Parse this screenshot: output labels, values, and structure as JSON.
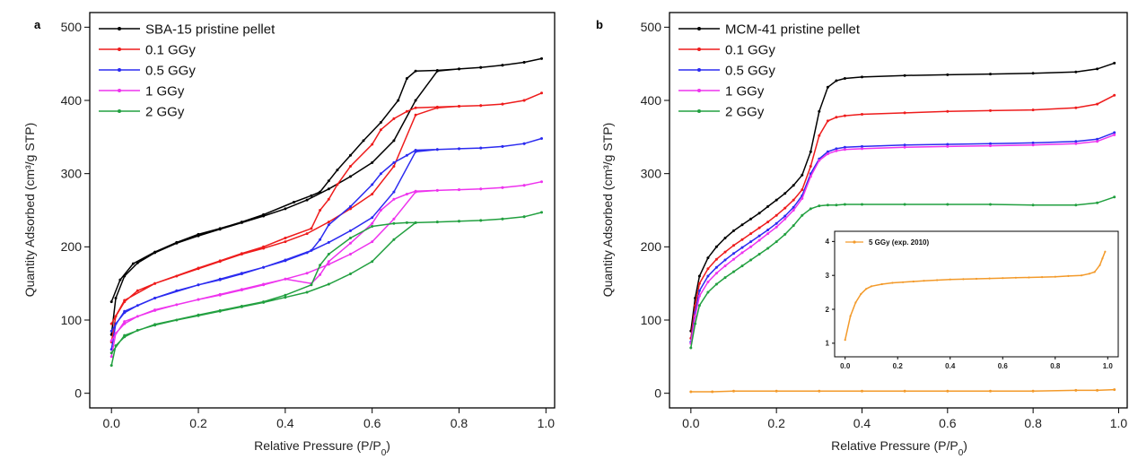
{
  "chart_data": [
    {
      "panel": "a",
      "type": "line",
      "xlabel": "Relative Pressure (P/P",
      "xlabel_sub": "0",
      "xlabel_end": ")",
      "ylabel": "Quantity Adsorbed (cm³/g STP)",
      "xlim": [
        -0.05,
        1.02
      ],
      "ylim": [
        -20,
        520
      ],
      "xticks": [
        0.0,
        0.2,
        0.4,
        0.6,
        0.8,
        1.0
      ],
      "xtick_labels": [
        "0.0",
        "0.2",
        "0.4",
        "0.6",
        "0.8",
        "1.0"
      ],
      "yticks": [
        0,
        100,
        200,
        300,
        400,
        500
      ],
      "ytick_labels": [
        "0",
        "100",
        "200",
        "300",
        "400",
        "500"
      ],
      "legend_position": "top-left",
      "series": [
        {
          "name": "SBA-15 pristine pellet",
          "color": "#000000",
          "x": [
            0.0,
            0.01,
            0.03,
            0.06,
            0.1,
            0.15,
            0.2,
            0.25,
            0.3,
            0.35,
            0.4,
            0.45,
            0.5,
            0.55,
            0.6,
            0.65,
            0.7,
            0.75,
            0.8,
            0.85,
            0.9,
            0.95,
            0.99,
            0.95,
            0.9,
            0.85,
            0.8,
            0.75,
            0.7,
            0.68,
            0.66,
            0.62,
            0.58,
            0.55,
            0.52,
            0.5,
            0.48,
            0.46,
            0.42,
            0.35,
            0.3,
            0.25,
            0.2,
            0.15,
            0.1,
            0.05,
            0.02,
            0.0
          ],
          "y": [
            80,
            130,
            160,
            178,
            192,
            205,
            215,
            224,
            233,
            242,
            252,
            264,
            279,
            296,
            315,
            345,
            400,
            440,
            443,
            445,
            448,
            452,
            457,
            452,
            448,
            445,
            443,
            441,
            440,
            430,
            400,
            370,
            345,
            325,
            305,
            290,
            275,
            270,
            261,
            244,
            234,
            225,
            217,
            206,
            193,
            177,
            155,
            125
          ]
        },
        {
          "name": "0.1 GGy",
          "color": "#ee1c1c",
          "x": [
            0.0,
            0.01,
            0.03,
            0.06,
            0.1,
            0.15,
            0.2,
            0.25,
            0.3,
            0.35,
            0.4,
            0.45,
            0.5,
            0.55,
            0.6,
            0.65,
            0.7,
            0.75,
            0.8,
            0.85,
            0.9,
            0.95,
            0.99,
            0.95,
            0.9,
            0.85,
            0.8,
            0.75,
            0.7,
            0.68,
            0.65,
            0.62,
            0.6,
            0.55,
            0.52,
            0.5,
            0.48,
            0.46,
            0.4,
            0.35,
            0.3,
            0.25,
            0.2,
            0.1,
            0.03,
            0.0
          ],
          "y": [
            70,
            105,
            125,
            140,
            150,
            160,
            170,
            180,
            190,
            198,
            207,
            218,
            234,
            252,
            272,
            310,
            380,
            390,
            392,
            393,
            395,
            400,
            410,
            400,
            395,
            393,
            392,
            391,
            390,
            385,
            375,
            360,
            340,
            310,
            285,
            265,
            250,
            225,
            212,
            200,
            191,
            181,
            171,
            150,
            127,
            95
          ]
        },
        {
          "name": "0.5 GGy",
          "color": "#2b2bf0",
          "x": [
            0.0,
            0.01,
            0.03,
            0.06,
            0.1,
            0.15,
            0.2,
            0.25,
            0.3,
            0.35,
            0.4,
            0.45,
            0.5,
            0.55,
            0.6,
            0.65,
            0.7,
            0.75,
            0.8,
            0.85,
            0.9,
            0.95,
            0.99,
            0.95,
            0.9,
            0.85,
            0.8,
            0.75,
            0.7,
            0.68,
            0.65,
            0.62,
            0.6,
            0.55,
            0.5,
            0.48,
            0.46,
            0.4,
            0.35,
            0.3,
            0.25,
            0.2,
            0.1,
            0.03,
            0.0
          ],
          "y": [
            60,
            95,
            110,
            120,
            130,
            140,
            148,
            156,
            164,
            172,
            181,
            192,
            206,
            222,
            240,
            275,
            330,
            333,
            334,
            335,
            337,
            341,
            348,
            341,
            337,
            335,
            334,
            333,
            332,
            325,
            315,
            300,
            285,
            255,
            230,
            210,
            195,
            182,
            172,
            163,
            155,
            148,
            130,
            112,
            85
          ]
        },
        {
          "name": "1 GGy",
          "color": "#ee33ee",
          "x": [
            0.0,
            0.01,
            0.03,
            0.06,
            0.1,
            0.15,
            0.2,
            0.25,
            0.3,
            0.35,
            0.4,
            0.45,
            0.5,
            0.55,
            0.6,
            0.65,
            0.7,
            0.75,
            0.8,
            0.85,
            0.9,
            0.95,
            0.99,
            0.95,
            0.9,
            0.85,
            0.8,
            0.75,
            0.7,
            0.68,
            0.65,
            0.62,
            0.6,
            0.55,
            0.5,
            0.48,
            0.46,
            0.4,
            0.35,
            0.3,
            0.25,
            0.2,
            0.1,
            0.03,
            0.0
          ],
          "y": [
            50,
            82,
            95,
            105,
            113,
            121,
            128,
            135,
            142,
            149,
            156,
            164,
            176,
            190,
            207,
            238,
            275,
            277,
            278,
            279,
            281,
            284,
            289,
            284,
            281,
            279,
            278,
            277,
            276,
            272,
            265,
            250,
            232,
            205,
            180,
            162,
            150,
            156,
            148,
            141,
            134,
            128,
            114,
            98,
            72
          ]
        },
        {
          "name": "2 GGy",
          "color": "#22a040",
          "x": [
            0.0,
            0.01,
            0.03,
            0.06,
            0.1,
            0.15,
            0.2,
            0.25,
            0.3,
            0.35,
            0.4,
            0.45,
            0.5,
            0.55,
            0.6,
            0.65,
            0.7,
            0.75,
            0.8,
            0.85,
            0.9,
            0.95,
            0.99,
            0.95,
            0.9,
            0.85,
            0.8,
            0.75,
            0.7,
            0.68,
            0.65,
            0.6,
            0.55,
            0.5,
            0.48,
            0.46,
            0.4,
            0.35,
            0.3,
            0.25,
            0.2,
            0.1,
            0.03,
            0.0
          ],
          "y": [
            38,
            65,
            77,
            86,
            93,
            100,
            106,
            112,
            118,
            124,
            131,
            138,
            149,
            163,
            180,
            210,
            233,
            234,
            235,
            236,
            238,
            241,
            247,
            241,
            238,
            236,
            235,
            234,
            233,
            233,
            232,
            228,
            212,
            190,
            175,
            148,
            134,
            125,
            119,
            113,
            107,
            94,
            79,
            55
          ]
        }
      ]
    },
    {
      "panel": "b",
      "type": "line",
      "xlabel": "Relative Pressure (P/P",
      "xlabel_sub": "0",
      "xlabel_end": ")",
      "ylabel": "Quantity Adsorbed (cm³/g STP)",
      "xlim": [
        -0.05,
        1.02
      ],
      "ylim": [
        -20,
        520
      ],
      "xticks": [
        0.0,
        0.2,
        0.4,
        0.6,
        0.8,
        1.0
      ],
      "xtick_labels": [
        "0.0",
        "0.2",
        "0.4",
        "0.6",
        "0.8",
        "1.0"
      ],
      "yticks": [
        0,
        100,
        200,
        300,
        400,
        500
      ],
      "ytick_labels": [
        "0",
        "100",
        "200",
        "300",
        "400",
        "500"
      ],
      "legend_position": "top-left",
      "series": [
        {
          "name": "MCM-41 pristine pellet",
          "color": "#000000",
          "x": [
            0.0,
            0.01,
            0.02,
            0.04,
            0.06,
            0.08,
            0.1,
            0.12,
            0.14,
            0.16,
            0.18,
            0.2,
            0.22,
            0.24,
            0.26,
            0.28,
            0.3,
            0.32,
            0.34,
            0.36,
            0.4,
            0.5,
            0.6,
            0.7,
            0.8,
            0.9,
            0.95,
            0.99
          ],
          "y": [
            85,
            130,
            160,
            185,
            200,
            212,
            222,
            230,
            238,
            246,
            255,
            264,
            273,
            284,
            298,
            330,
            385,
            418,
            427,
            430,
            432,
            434,
            435,
            436,
            437,
            439,
            443,
            451
          ]
        },
        {
          "name": "0.1 GGy",
          "color": "#ee1c1c",
          "x": [
            0.0,
            0.01,
            0.02,
            0.04,
            0.06,
            0.08,
            0.1,
            0.12,
            0.14,
            0.16,
            0.18,
            0.2,
            0.22,
            0.24,
            0.26,
            0.28,
            0.3,
            0.32,
            0.34,
            0.36,
            0.4,
            0.5,
            0.6,
            0.7,
            0.8,
            0.9,
            0.95,
            0.99
          ],
          "y": [
            75,
            120,
            150,
            170,
            183,
            193,
            202,
            210,
            218,
            226,
            234,
            243,
            253,
            264,
            278,
            310,
            352,
            372,
            377,
            379,
            381,
            383,
            385,
            386,
            387,
            390,
            395,
            407
          ]
        },
        {
          "name": "0.5 GGy",
          "color": "#2b2bf0",
          "x": [
            0.0,
            0.01,
            0.02,
            0.04,
            0.06,
            0.08,
            0.1,
            0.12,
            0.14,
            0.16,
            0.18,
            0.2,
            0.22,
            0.24,
            0.26,
            0.28,
            0.3,
            0.32,
            0.34,
            0.36,
            0.4,
            0.5,
            0.6,
            0.7,
            0.8,
            0.9,
            0.95,
            0.99
          ],
          "y": [
            70,
            110,
            140,
            160,
            172,
            182,
            191,
            199,
            207,
            215,
            223,
            232,
            242,
            254,
            270,
            300,
            320,
            330,
            334,
            336,
            337,
            339,
            340,
            341,
            342,
            344,
            347,
            356
          ]
        },
        {
          "name": "1 GGy",
          "color": "#ee33ee",
          "x": [
            0.0,
            0.01,
            0.02,
            0.04,
            0.06,
            0.08,
            0.1,
            0.12,
            0.14,
            0.16,
            0.18,
            0.2,
            0.22,
            0.24,
            0.26,
            0.28,
            0.3,
            0.32,
            0.34,
            0.36,
            0.4,
            0.5,
            0.6,
            0.7,
            0.8,
            0.9,
            0.95,
            0.99
          ],
          "y": [
            68,
            105,
            133,
            152,
            164,
            174,
            183,
            192,
            200,
            209,
            218,
            227,
            238,
            250,
            266,
            296,
            318,
            327,
            331,
            333,
            334,
            336,
            337,
            338,
            339,
            341,
            344,
            353
          ]
        },
        {
          "name": "2 GGy",
          "color": "#22a040",
          "x": [
            0.0,
            0.01,
            0.02,
            0.04,
            0.06,
            0.08,
            0.1,
            0.12,
            0.14,
            0.16,
            0.18,
            0.2,
            0.22,
            0.24,
            0.26,
            0.28,
            0.3,
            0.32,
            0.34,
            0.36,
            0.4,
            0.5,
            0.6,
            0.7,
            0.8,
            0.9,
            0.95,
            0.99
          ],
          "y": [
            62,
            95,
            120,
            138,
            149,
            158,
            166,
            174,
            182,
            190,
            198,
            207,
            217,
            229,
            243,
            252,
            256,
            257,
            257,
            258,
            258,
            258,
            258,
            258,
            257,
            257,
            260,
            268
          ]
        },
        {
          "name": "",
          "color": "#f39a2a",
          "x": [
            0.0,
            0.05,
            0.1,
            0.2,
            0.3,
            0.4,
            0.5,
            0.6,
            0.7,
            0.8,
            0.9,
            0.95,
            0.99
          ],
          "y": [
            2,
            2,
            3,
            3,
            3,
            3,
            3,
            3,
            3,
            3,
            4,
            4,
            5
          ]
        }
      ],
      "inset": {
        "type": "line",
        "xlim": [
          -0.04,
          1.04
        ],
        "ylim": [
          0.6,
          4.3
        ],
        "xticks": [
          0.0,
          0.2,
          0.4,
          0.6,
          0.8,
          1.0
        ],
        "xtick_labels": [
          "0.0",
          "0.2",
          "0.4",
          "0.6",
          "0.8",
          "1.0"
        ],
        "yticks": [
          1,
          2,
          3,
          4
        ],
        "ytick_labels": [
          "1",
          "2",
          "3",
          "4"
        ],
        "series": [
          {
            "name": "5 GGy (exp. 2010)",
            "color": "#f39a2a",
            "x": [
              0.0,
              0.02,
              0.04,
              0.06,
              0.08,
              0.1,
              0.14,
              0.18,
              0.22,
              0.26,
              0.3,
              0.35,
              0.4,
              0.45,
              0.5,
              0.55,
              0.6,
              0.65,
              0.7,
              0.75,
              0.8,
              0.85,
              0.9,
              0.93,
              0.95,
              0.97,
              0.98,
              0.99
            ],
            "y": [
              1.1,
              1.8,
              2.2,
              2.45,
              2.6,
              2.68,
              2.74,
              2.78,
              2.8,
              2.82,
              2.84,
              2.86,
              2.88,
              2.89,
              2.9,
              2.91,
              2.92,
              2.93,
              2.94,
              2.95,
              2.96,
              2.98,
              3.0,
              3.05,
              3.1,
              3.3,
              3.5,
              3.7
            ]
          }
        ]
      }
    }
  ]
}
